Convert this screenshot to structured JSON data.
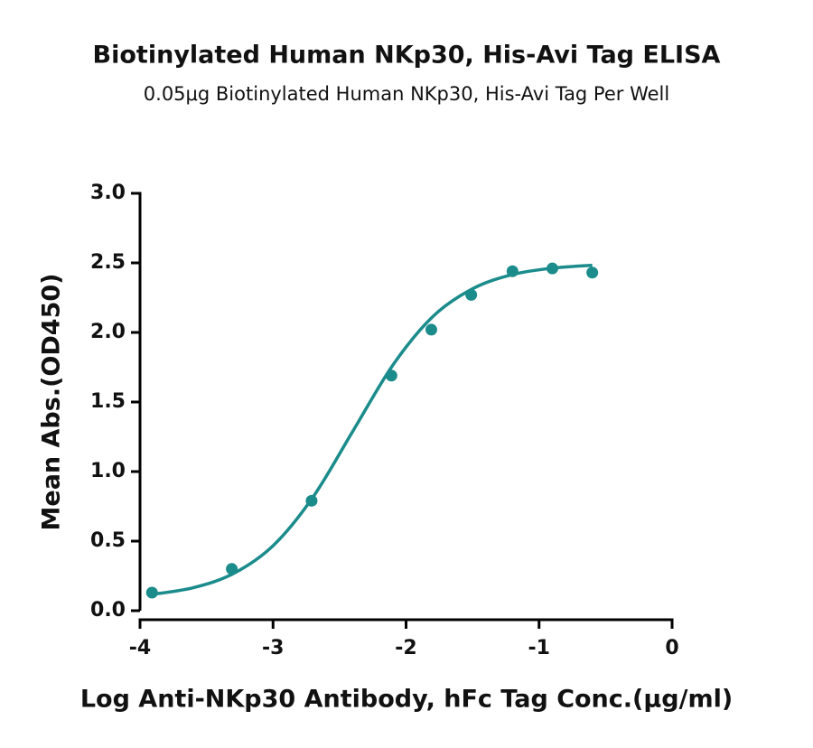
{
  "chart_data": {
    "type": "scatter",
    "title": "Biotinylated Human NKp30, His-Avi Tag ELISA",
    "subtitle": "0.05μg Biotinylated Human NKp30, His-Avi Tag Per Well",
    "x_label": "Log Anti-NKp30 Antibody, hFc Tag Conc.(μg/ml)",
    "y_label": "Mean Abs.(OD450)",
    "xlim": [
      -4,
      0
    ],
    "xticks": [
      -4,
      -3,
      -2,
      -1,
      0
    ],
    "ylim": [
      0,
      3
    ],
    "yticks": [
      {
        "value": 0,
        "label": "0.0"
      },
      {
        "value": 0.5,
        "label": "0.5"
      },
      {
        "value": 1,
        "label": "1.0"
      },
      {
        "value": 1.5,
        "label": "1.5"
      },
      {
        "value": 2,
        "label": "2.0"
      },
      {
        "value": 2.5,
        "label": "2.5"
      },
      {
        "value": 3,
        "label": "3.0"
      }
    ],
    "series": [
      {
        "type": "scatter",
        "color": "#1b8b8b",
        "x": [
          -3.91,
          -3.31,
          -2.71,
          -2.11,
          -1.81,
          -1.51,
          -1.2,
          -0.9,
          -0.6
        ],
        "values": [
          0.13,
          0.3,
          0.79,
          1.69,
          2.02,
          2.27,
          2.44,
          2.46,
          2.43
        ]
      },
      {
        "type": "line",
        "color": "#1b8b8b",
        "x": [
          -3.9,
          -3.6,
          -3.3,
          -3.0,
          -2.7,
          -2.4,
          -2.1,
          -1.8,
          -1.5,
          -1.2,
          -0.9,
          -0.6
        ],
        "values": [
          0.118,
          0.165,
          0.266,
          0.467,
          0.816,
          1.29,
          1.764,
          2.113,
          2.314,
          2.416,
          2.462,
          2.483
        ]
      }
    ]
  }
}
